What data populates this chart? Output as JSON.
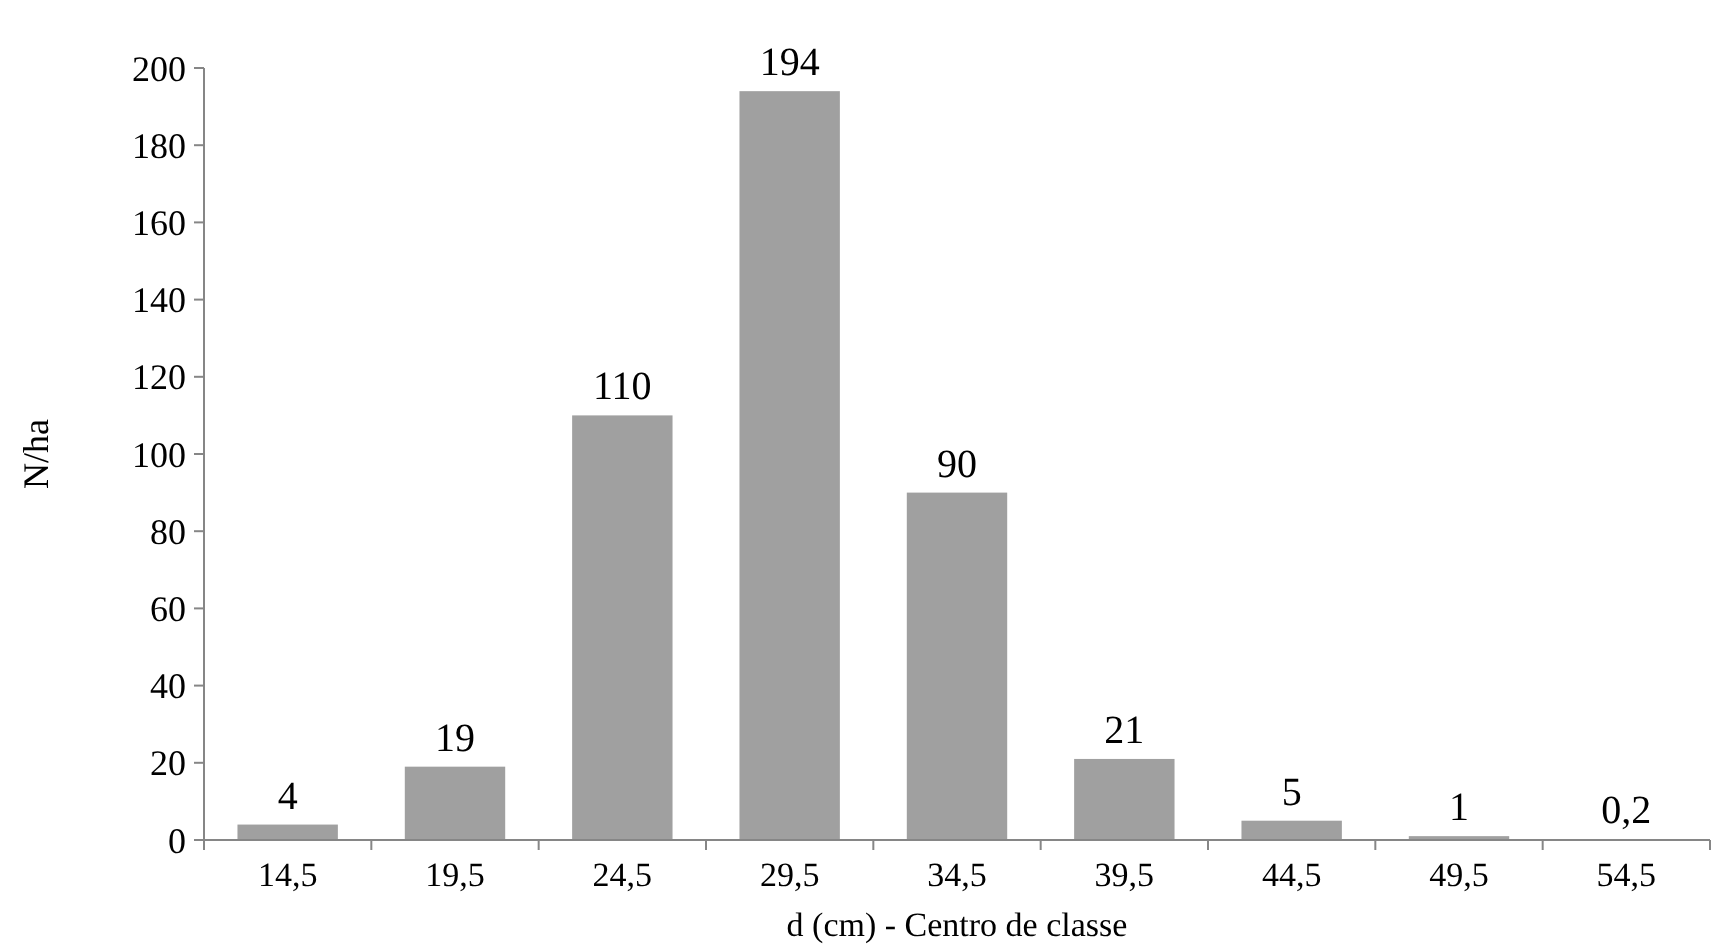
{
  "chart_data": {
    "type": "bar",
    "xlabel": "d (cm) - Centro de classe",
    "ylabel": "N/ha",
    "categories": [
      "14,5",
      "19,5",
      "24,5",
      "29,5",
      "34,5",
      "39,5",
      "44,5",
      "49,5",
      "54,5"
    ],
    "values": [
      4,
      19,
      110,
      194,
      90,
      21,
      5,
      1,
      0.2
    ],
    "value_labels": [
      "4",
      "19",
      "110",
      "194",
      "90",
      "21",
      "5",
      "1",
      "0,2"
    ],
    "color": "#a0a0a0",
    "ylim": [
      0,
      200
    ],
    "yticks": [
      0,
      20,
      40,
      60,
      80,
      100,
      120,
      140,
      160,
      180,
      200
    ],
    "grid": false
  }
}
